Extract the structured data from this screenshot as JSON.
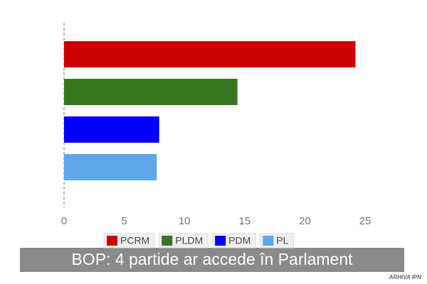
{
  "chart_data": {
    "type": "bar",
    "orientation": "horizontal",
    "title": "BOP: 4 partide ar accede în Parlament",
    "categories": [
      "PCRM",
      "PLDM",
      "PDM",
      "PL"
    ],
    "values": [
      24.2,
      14.4,
      7.9,
      7.7
    ],
    "colors": [
      "#cc0000",
      "#38761d",
      "#0000ff",
      "#5fa8e8"
    ],
    "xlim": [
      0,
      25
    ],
    "xticks": [
      0,
      5,
      10,
      15,
      20,
      25
    ],
    "watermark": "ARHIVA IPN"
  }
}
